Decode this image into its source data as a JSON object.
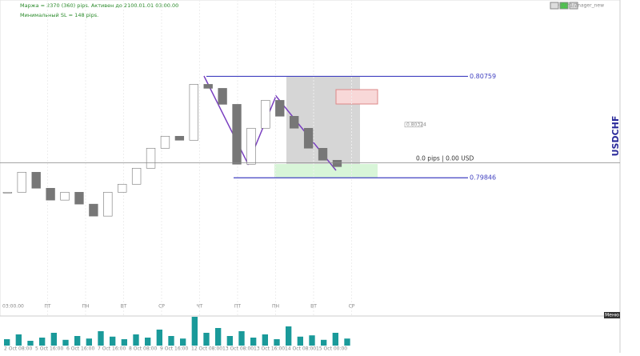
{
  "header": {
    "line1": "Маржа = 2370 (360) pips. Активен до 2100.01.01 03:00.00",
    "line2": "Минимальный SL = 148 pips.",
    "panel": "Order Manager_new",
    "buttons": [
      "1/1",
      "1/2"
    ]
  },
  "symbol": "USDCHF",
  "price": {
    "ylim": [
      0.7871,
      0.8141
    ],
    "closes": [
      0.79716,
      0.79896,
      0.79752,
      0.79645,
      0.79716,
      0.79609,
      0.79501,
      0.79716,
      0.79788,
      0.79932,
      0.80112,
      0.8022,
      0.80184,
      0.80687,
      0.80651,
      0.80507,
      0.79968,
      0.80292,
      0.80543,
      0.804,
      0.80292,
      0.80112,
      0.80004,
      0.79946
    ]
  },
  "levels": [
    0.80759,
    0.79846
  ],
  "box_label": 0.80324,
  "current": {
    "value": 0.7998,
    "label": "0.0 pips | 0.00 USD"
  },
  "time_label": "03:00.00",
  "day_labels": [
    "ПТ",
    "ПН",
    "ВТ",
    "СР",
    "ЧТ",
    "ПТ",
    "ПН",
    "ВТ",
    "СР"
  ],
  "date_labels": [
    "2 Oct 08:00",
    "5 Oct 16:00",
    "6 Oct 16:00",
    "7 Oct 16:00",
    "8 Oct 08:00",
    "9 Oct 16:00",
    "12 Oct 08:00",
    "13 Oct 08:00",
    "13 Oct 16:00",
    "14 Oct 08:00",
    "15 Oct 00:00"
  ],
  "volume": {
    "ylim": [
      0,
      100
    ],
    "values": [
      20,
      35,
      15,
      25,
      40,
      18,
      30,
      22,
      45,
      28,
      20,
      35,
      25,
      50,
      30,
      22,
      90,
      40,
      55,
      30,
      45,
      25,
      35,
      20,
      60,
      28,
      32,
      18,
      40,
      22
    ]
  },
  "menu": "Меню"
}
